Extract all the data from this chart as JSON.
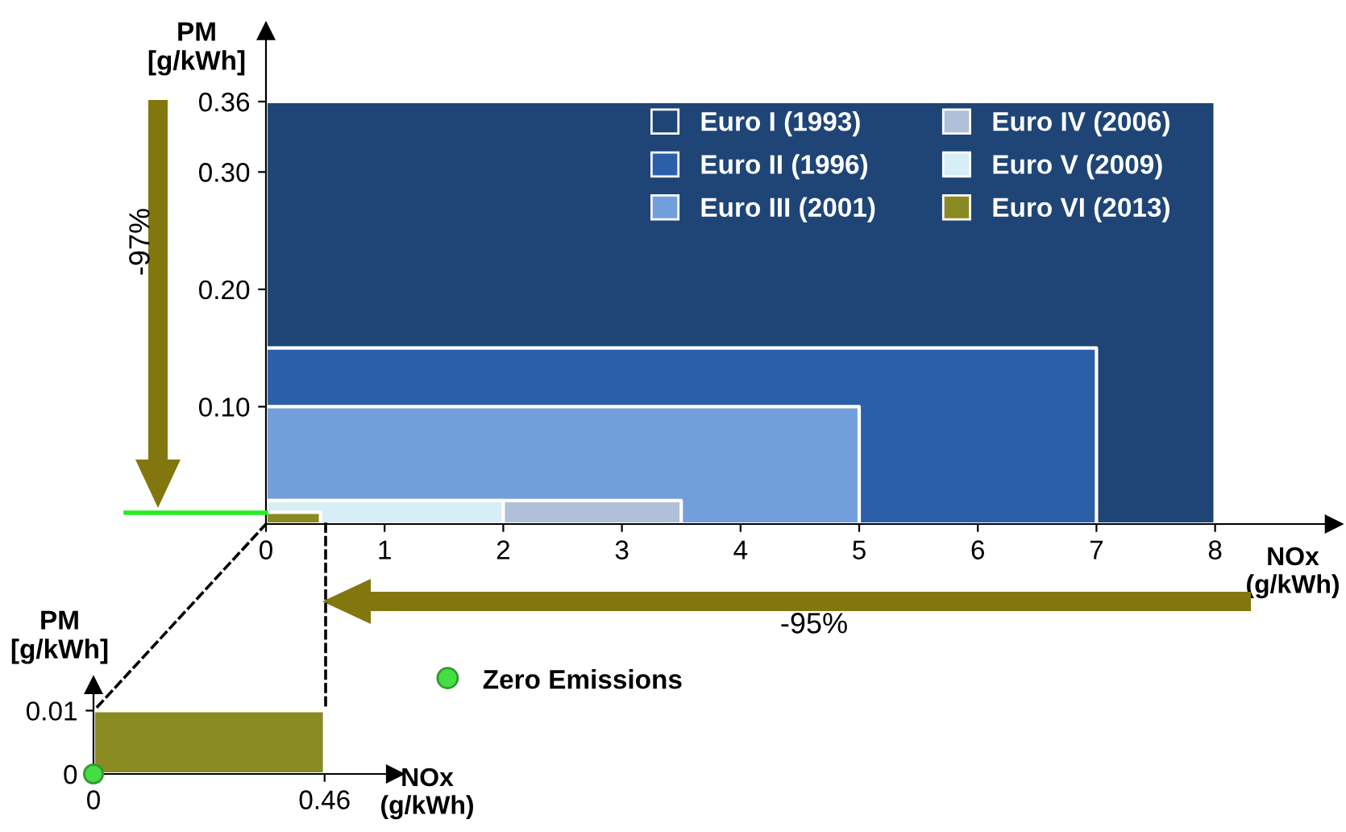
{
  "chart_data": [
    {
      "type": "area",
      "xlabel": "NOx\n(g/kWh)",
      "ylabel": "PM\n[g/kWh]",
      "xlim": [
        0,
        9
      ],
      "ylim": [
        0,
        0.42
      ],
      "xticks": [
        0,
        1,
        2,
        3,
        4,
        5,
        6,
        7,
        8
      ],
      "yticks": [
        {
          "value": 0.1,
          "label": "0.10"
        },
        {
          "value": 0.2,
          "label": "0.20"
        },
        {
          "value": 0.3,
          "label": "0.30"
        },
        0.36
      ],
      "legend": "top right",
      "grid": false,
      "series": [
        {
          "name": "Euro I (1993)",
          "color": "#1e4576",
          "x": [
            0,
            8
          ],
          "values": [
            0.36,
            0.36
          ]
        },
        {
          "name": "Euro II (1996)",
          "color": "#2b5fa8",
          "x": [
            0,
            7
          ],
          "values": [
            0.15,
            0.15
          ]
        },
        {
          "name": "Euro III (2001)",
          "color": "#729fdc",
          "x": [
            0,
            5
          ],
          "values": [
            0.1,
            0.1
          ]
        },
        {
          "name": "Euro IV (2006)",
          "color": "#b0c0d8",
          "x": [
            0,
            3.5
          ],
          "values": [
            0.02,
            0.02
          ]
        },
        {
          "name": "Euro V (2009)",
          "color": "#d8eef6",
          "x": [
            0,
            2
          ],
          "values": [
            0.02,
            0.02
          ]
        },
        {
          "name": "Euro VI (2013)",
          "color": "#8a8a22",
          "x": [
            0,
            0.46
          ],
          "values": [
            0.01,
            0.01
          ]
        }
      ],
      "annotations": [
        "-97%",
        "-95%"
      ]
    },
    {
      "type": "area",
      "xlabel": "NOx\n(g/kWh)",
      "ylabel": "PM\n[g/kWh]",
      "xlim": [
        0,
        0.6
      ],
      "ylim": [
        0,
        0.014
      ],
      "xticks": [
        0,
        0.46
      ],
      "yticks": [
        0,
        0.01
      ],
      "legend": "right",
      "grid": false,
      "series": [
        {
          "color": "#8a8a22",
          "x": [
            0,
            0.46
          ],
          "values": [
            0.01,
            0.01
          ]
        },
        {
          "name": "Zero Emissions",
          "type": "scatter",
          "marker": "circle",
          "color": "#44dd44",
          "x": [
            0
          ],
          "values": [
            0
          ]
        }
      ]
    }
  ]
}
